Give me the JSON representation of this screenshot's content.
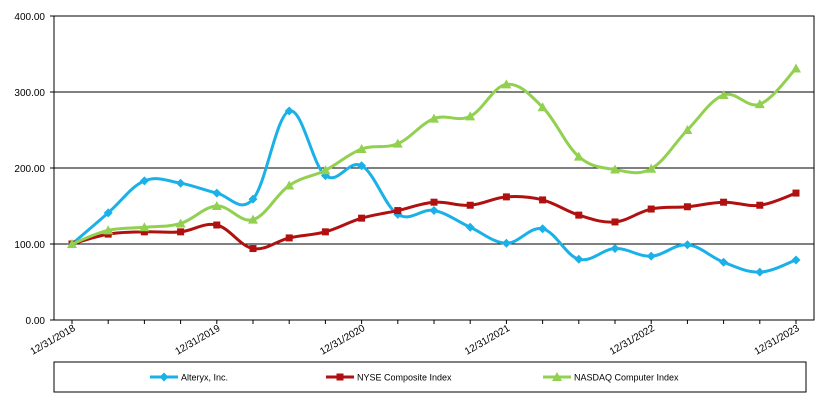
{
  "chart_data": {
    "type": "line",
    "title": "",
    "xlabel": "",
    "ylabel": "",
    "ylim": [
      0,
      400
    ],
    "y_ticks": [
      "0.00",
      "100.00",
      "200.00",
      "300.00",
      "400.00"
    ],
    "x_tick_labels": [
      "12/31/2018",
      "12/31/2019",
      "12/31/2020",
      "12/31/2021",
      "12/31/2022",
      "12/31/2023"
    ],
    "grid": "horizontal",
    "legend_position": "bottom",
    "x": [
      "12/31/2018",
      "3/31/2019",
      "6/30/2019",
      "9/30/2019",
      "12/31/2019",
      "3/31/2020",
      "6/30/2020",
      "9/30/2020",
      "12/31/2020",
      "3/31/2021",
      "6/30/2021",
      "9/30/2021",
      "12/31/2021",
      "3/31/2022",
      "6/30/2022",
      "9/30/2022",
      "12/31/2022",
      "3/31/2023",
      "6/30/2023",
      "9/30/2023",
      "12/31/2023"
    ],
    "series": [
      {
        "name": "Alteryx, Inc.",
        "color": "#1ab0e8",
        "marker": "diamond",
        "values": [
          100,
          141,
          183,
          180,
          167,
          159,
          275,
          190,
          203,
          139,
          144,
          122,
          101,
          120,
          80,
          94,
          84,
          99,
          76,
          63,
          79
        ]
      },
      {
        "name": "NYSE Composite Index",
        "color": "#b01010",
        "marker": "square",
        "values": [
          100,
          113,
          116,
          116,
          125,
          94,
          108,
          116,
          134,
          144,
          155,
          151,
          162,
          158,
          138,
          129,
          146,
          149,
          155,
          151,
          167
        ]
      },
      {
        "name": "NASDAQ Computer Index",
        "color": "#92d050",
        "marker": "triangle",
        "values": [
          100,
          118,
          122,
          127,
          150,
          132,
          177,
          197,
          225,
          232,
          265,
          268,
          310,
          280,
          215,
          198,
          199,
          250,
          296,
          284,
          331
        ]
      }
    ]
  }
}
